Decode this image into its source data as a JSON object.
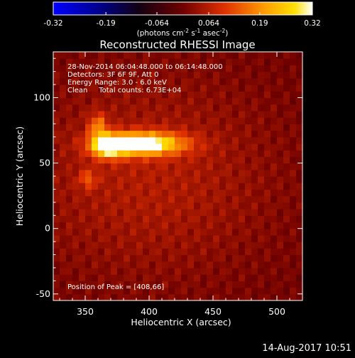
{
  "colorbar": {
    "tick_labels": [
      "-0.32",
      "-0.19",
      "-0.064",
      "0.064",
      "0.19",
      "0.32"
    ],
    "unit_parts": [
      "(photons cm",
      "-2",
      " s",
      "-1",
      " asec",
      "-2",
      ")"
    ],
    "range": [
      -0.32,
      0.32
    ]
  },
  "chart_data": {
    "type": "heatmap",
    "title": "Reconstructed RHESSI Image",
    "xlabel": "Heliocentric X (arcsec)",
    "ylabel": "Heliocentric Y (arcsec)",
    "xlim": [
      325,
      520
    ],
    "ylim": [
      -55,
      135
    ],
    "x_ticks": [
      350,
      400,
      450,
      500
    ],
    "y_ticks": [
      -50,
      0,
      50,
      100
    ],
    "annotations": [
      "28-Nov-2014 06:04:48.000 to 06:14:48.000",
      "Detectors: 3F 6F 9F, Att 0",
      "Energy Range: 3.0 - 6.0 keV",
      "Clean     Total counts: 6.73E+04"
    ],
    "peak_label": "Position of Peak = [408,66]",
    "peak": [
      408,
      66
    ],
    "sources": [
      {
        "x": 395,
        "y": 65,
        "sx": 22,
        "sy": 6,
        "amp": 0.32
      },
      {
        "x": 368,
        "y": 63,
        "sx": 9,
        "sy": 6,
        "amp": 0.26
      },
      {
        "x": 360,
        "y": 78,
        "sx": 5,
        "sy": 7,
        "amp": 0.14
      },
      {
        "x": 352,
        "y": 38,
        "sx": 5,
        "sy": 5,
        "amp": 0.09
      },
      {
        "x": 400,
        "y": 40,
        "sx": 70,
        "sy": 55,
        "amp": 0.06
      }
    ],
    "grid": false,
    "colormap": [
      "#0000ff",
      "#000000",
      "#9b0000",
      "#ff5a00",
      "#ffc800",
      "#ffffff"
    ]
  },
  "footer": {
    "timestamp": "14-Aug-2017 10:51"
  }
}
